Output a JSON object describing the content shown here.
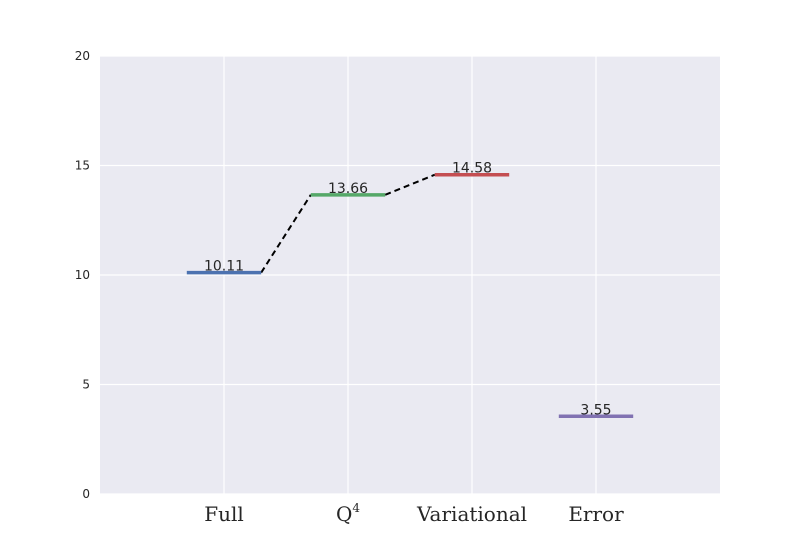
{
  "chart_data": {
    "type": "line",
    "title": "",
    "xlabel": "",
    "ylabel": "",
    "ylim": [
      0,
      20
    ],
    "yticks": [
      0,
      5,
      10,
      15,
      20
    ],
    "xlim": [
      -1,
      4
    ],
    "grid": true,
    "legend": "none",
    "categories": [
      {
        "label": "Full"
      },
      {
        "label": "Q",
        "sup": "4"
      },
      {
        "label": "Variational"
      },
      {
        "label": "Error"
      }
    ],
    "levels": [
      {
        "category": "Full",
        "value": 10.11,
        "label": "10.11",
        "color": "#4c72b0"
      },
      {
        "category": "Q4",
        "value": 13.66,
        "label": "13.66",
        "color": "#55a868"
      },
      {
        "category": "Variational",
        "value": 14.58,
        "label": "14.58",
        "color": "#c44e52"
      },
      {
        "category": "Error",
        "value": 3.55,
        "label": "3.55",
        "color": "#8172b2"
      }
    ],
    "connectors": [
      {
        "from": 0,
        "to": 1
      },
      {
        "from": 1,
        "to": 2
      }
    ],
    "colors": {
      "plot_background": "#eaeaf2",
      "grid": "#ffffff",
      "connector": "#000000"
    }
  }
}
